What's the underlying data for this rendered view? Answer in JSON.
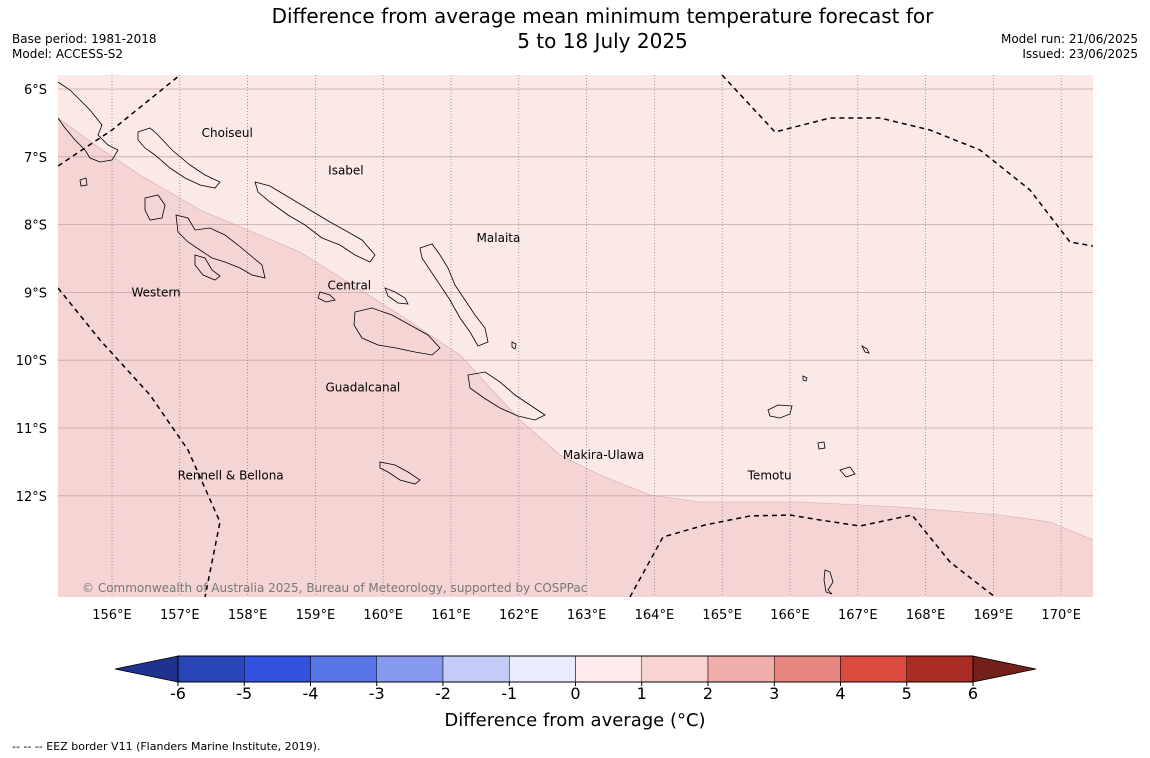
{
  "header": {
    "title_line1": "Difference from average mean minimum temperature forecast for",
    "title_line2": "5 to 18 July 2025",
    "base_period": "Base period: 1981-2018",
    "model": "Model: ACCESS-S2",
    "model_run": "Model run: 21/06/2025",
    "issued": "Issued: 23/06/2025"
  },
  "map": {
    "lat_labels": [
      "6°S",
      "7°S",
      "8°S",
      "9°S",
      "10°S",
      "11°S",
      "12°S"
    ],
    "lon_labels": [
      "156°E",
      "157°E",
      "158°E",
      "159°E",
      "160°E",
      "161°E",
      "162°E",
      "163°E",
      "164°E",
      "165°E",
      "166°E",
      "167°E",
      "168°E",
      "169°E",
      "170°E"
    ],
    "regions": [
      {
        "name": "Choiseul",
        "lon": 157.7,
        "lat": -6.65
      },
      {
        "name": "Isabel",
        "lon": 159.45,
        "lat": -7.2
      },
      {
        "name": "Malaita",
        "lon": 161.7,
        "lat": -8.2
      },
      {
        "name": "Western",
        "lon": 156.65,
        "lat": -9.0
      },
      {
        "name": "Central",
        "lon": 159.5,
        "lat": -8.9
      },
      {
        "name": "Guadalcanal",
        "lon": 159.7,
        "lat": -10.4
      },
      {
        "name": "Makira-Ulawa",
        "lon": 163.25,
        "lat": -11.4
      },
      {
        "name": "Rennell & Bellona",
        "lon": 157.75,
        "lat": -11.7
      },
      {
        "name": "Temotu",
        "lon": 165.7,
        "lat": -11.7
      }
    ],
    "copyright": "© Commonwealth of Australia 2025, Bureau of Meteorology, supported by COSPPac",
    "colors": {
      "band_0_1": "#fbe9e8",
      "band_1_2": "#f5d5d3"
    }
  },
  "colorbar": {
    "ticks": [
      "-6",
      "-5",
      "-4",
      "-3",
      "-2",
      "-1",
      "0",
      "1",
      "2",
      "3",
      "4",
      "5",
      "6"
    ],
    "colors": [
      "#21318f",
      "#2a46b6",
      "#3251df",
      "#5a76e6",
      "#8699ef",
      "#c3cbf6",
      "#e9ecfc",
      "#fdeceb",
      "#f7d4d2",
      "#efaeaa",
      "#e7867e",
      "#dc4b3f",
      "#aa2c24",
      "#74201b"
    ],
    "label": "Difference from average (°C)"
  },
  "footnote": "--  --  -- EEZ border V11 (Flanders Marine Institute, 2019)."
}
